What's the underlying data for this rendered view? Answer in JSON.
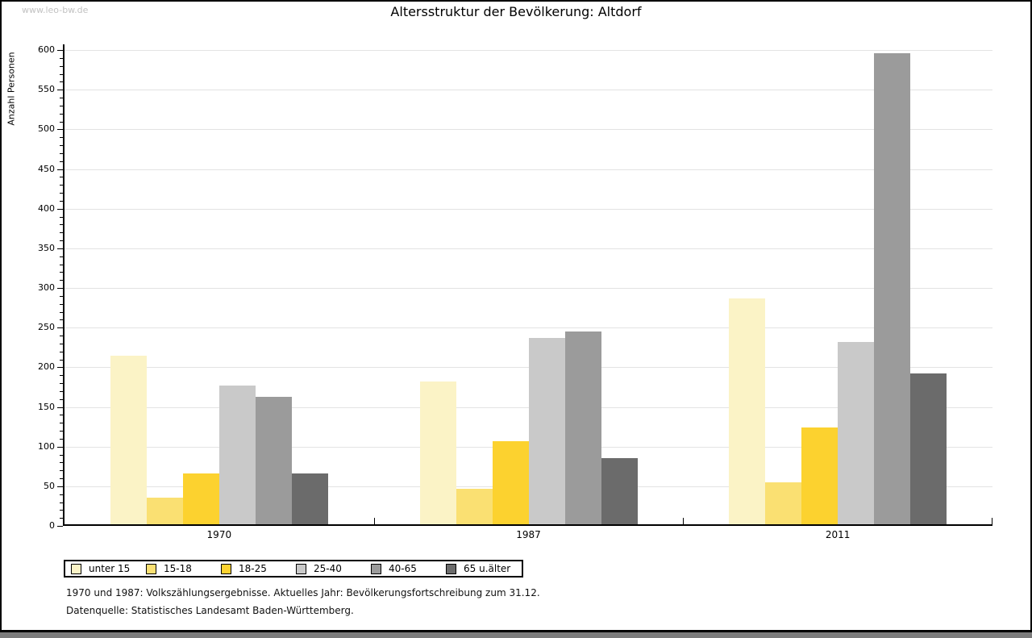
{
  "page": {
    "watermark": "www.leo-bw.de",
    "footnotes": [
      "1970 und 1987: Volkszählungsergebnisse. Aktuelles Jahr: Bevölkerungsfortschreibung zum 31.12.",
      "Datenquelle: Statistisches Landesamt Baden-Württemberg."
    ]
  },
  "chart_data": {
    "type": "bar",
    "title": "Altersstruktur der Bevölkerung: Altdorf",
    "ylabel": "Anzahl Personen",
    "xlabel": "",
    "categories": [
      "1970",
      "1987",
      "2011"
    ],
    "series": [
      {
        "name": "unter 15",
        "color": "#FBF3C6",
        "values": [
          213,
          180,
          285
        ]
      },
      {
        "name": "15-18",
        "color": "#FAE072",
        "values": [
          34,
          45,
          53
        ]
      },
      {
        "name": "18-25",
        "color": "#FCD22F",
        "values": [
          64,
          105,
          122
        ]
      },
      {
        "name": "25-40",
        "color": "#C9C9C9",
        "values": [
          175,
          235,
          230
        ]
      },
      {
        "name": "40-65",
        "color": "#9B9B9B",
        "values": [
          161,
          243,
          594
        ]
      },
      {
        "name": "65 u.älter",
        "color": "#6B6B6B",
        "values": [
          64,
          83,
          190
        ]
      }
    ],
    "ylim": [
      0,
      600
    ],
    "ytick_step": 50,
    "yminor_step": 10,
    "grid": true,
    "legend_position": "bottom",
    "colors": {
      "axis": "#000000",
      "grid": "#e3e3e3",
      "watermark": "#c2c2c2"
    }
  }
}
